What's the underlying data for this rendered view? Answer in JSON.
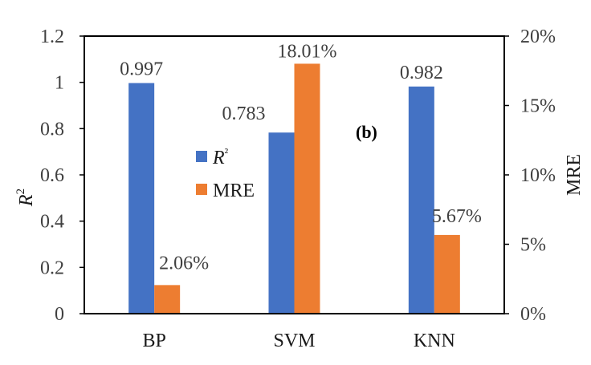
{
  "chart_data": {
    "type": "bar",
    "panel_label": "(b)",
    "categories": [
      "BP",
      "SVM",
      "KNN"
    ],
    "series": [
      {
        "name": "R²",
        "axis": "left",
        "color": "#4472C4",
        "values": [
          0.997,
          0.783,
          0.982
        ],
        "labels": [
          "0.997",
          "0.783",
          "0.982"
        ]
      },
      {
        "name": "MRE",
        "axis": "right",
        "color": "#ED7D31",
        "values": [
          2.06,
          18.01,
          5.67
        ],
        "labels": [
          "2.06%",
          "18.01%",
          "5.67%"
        ]
      }
    ],
    "ylabel": "R",
    "ylabel_superscript": "2",
    "y2label": "MRE",
    "ylim": [
      0,
      1.2
    ],
    "y2lim": [
      0,
      20
    ],
    "yticks": [
      "0",
      "0.2",
      "0.4",
      "0.6",
      "0.8",
      "1",
      "1.2"
    ],
    "y2ticks": [
      "0%",
      "5%",
      "10%",
      "15%",
      "20%"
    ],
    "legend": {
      "placement": "center-left",
      "entries": [
        {
          "label": "R²",
          "italic_base": "R",
          "superscript": "²",
          "color": "#4472C4"
        },
        {
          "label": "MRE",
          "color": "#ED7D31"
        }
      ]
    },
    "grid": false
  }
}
